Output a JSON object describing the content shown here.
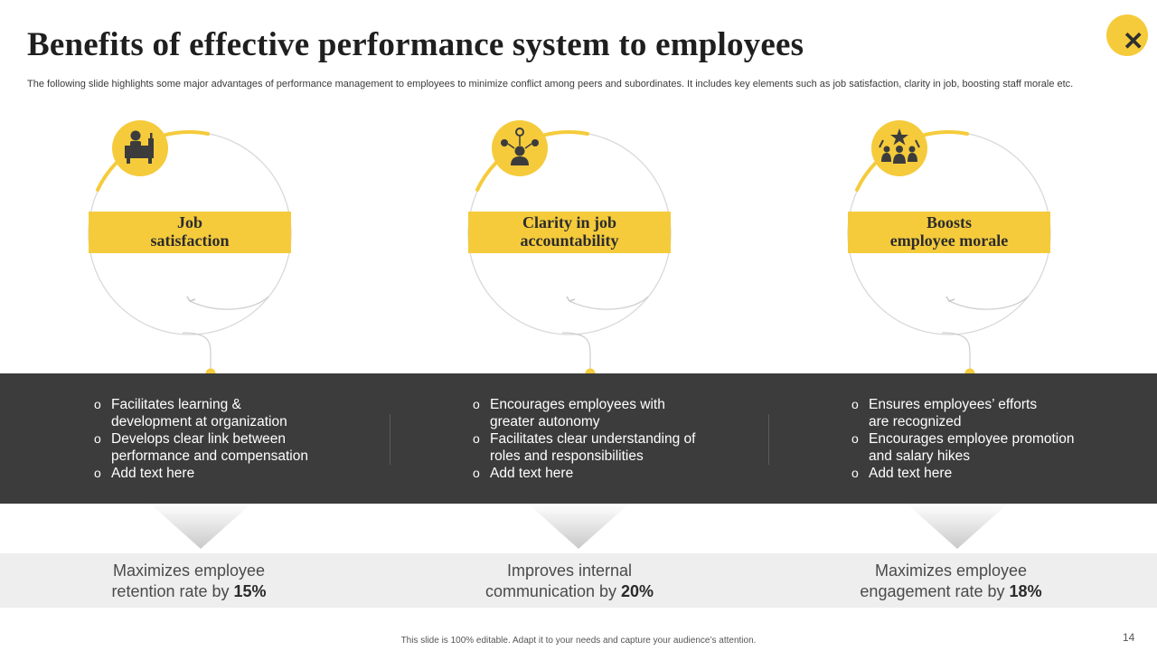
{
  "title": "Benefits of effective performance system to employees",
  "subtitle": "The following slide highlights some major advantages of performance management to employees to minimize conflict among peers and subordinates. It includes key elements such as job satisfaction, clarity in job, boosting staff morale etc.",
  "close_icon": "close-icon",
  "colors": {
    "accent": "#f5cb3c",
    "dark_band": "#3c3c3c",
    "stat_band": "#eeeeee"
  },
  "cards": [
    {
      "icon": "employee-at-desk-icon",
      "label_line1": "Job",
      "label_line2": "satisfaction",
      "bullets": [
        {
          "line1": "Facilitates learning &",
          "line2": "development at organization"
        },
        {
          "line1": "Develops clear link between",
          "line2": "performance and compensation"
        },
        {
          "line1": "Add text here",
          "line2": ""
        }
      ],
      "stat_line1": "Maximizes employee",
      "stat_prefix": "retention rate by ",
      "stat_value": "15%"
    },
    {
      "icon": "person-network-icon",
      "label_line1": "Clarity in job",
      "label_line2": "accountability",
      "bullets": [
        {
          "line1": "Encourages employees with",
          "line2": "greater autonomy"
        },
        {
          "line1": "Facilitates clear understanding  of",
          "line2": "roles and responsibilities"
        },
        {
          "line1": "Add text here",
          "line2": ""
        }
      ],
      "stat_line1": "Improves internal",
      "stat_prefix": "communication by ",
      "stat_value": "20%"
    },
    {
      "icon": "team-star-icon",
      "label_line1": "Boosts",
      "label_line2": "employee morale",
      "bullets": [
        {
          "line1": "Ensures employees’ efforts",
          "line2": "are recognized"
        },
        {
          "line1": "Encourages employee promotion",
          "line2": "and salary hikes"
        },
        {
          "line1": "Add text here",
          "line2": ""
        }
      ],
      "stat_line1": "Maximizes employee",
      "stat_prefix": "engagement rate by ",
      "stat_value": "18%"
    }
  ],
  "footer": "This slide is 100% editable.  Adapt it to your needs and capture your audience’s attention.",
  "page_number": "14"
}
